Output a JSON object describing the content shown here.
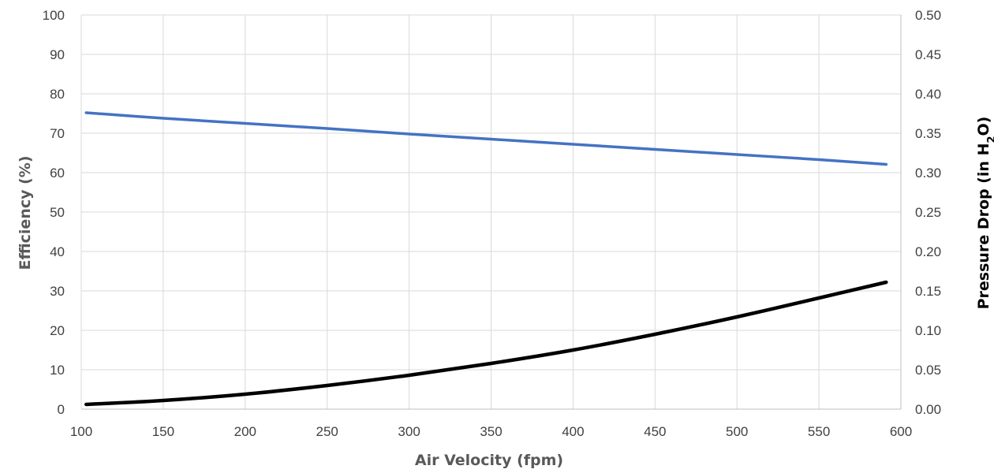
{
  "chart_data": {
    "type": "line",
    "xlabel": "Air Velocity (fpm)",
    "ylabel_left": "Efficiency (%)",
    "ylabel_right_parts": {
      "base": "Pressure Drop (in H",
      "sub": "2",
      "tail": "O)"
    },
    "xlim": [
      100,
      600
    ],
    "ylim_left": [
      0,
      100
    ],
    "ylim_right": [
      0,
      0.5
    ],
    "grid": true,
    "x_ticks": [
      "100",
      "150",
      "200",
      "250",
      "300",
      "350",
      "400",
      "450",
      "500",
      "550",
      "600"
    ],
    "y_left_ticks": [
      "0",
      "10",
      "20",
      "30",
      "40",
      "50",
      "60",
      "70",
      "80",
      "90",
      "100"
    ],
    "y_right_ticks": [
      "0.00",
      "0.05",
      "0.10",
      "0.15",
      "0.20",
      "0.25",
      "0.30",
      "0.35",
      "0.40",
      "0.45",
      "0.50"
    ],
    "series": [
      {
        "axis": "left",
        "color": "#4472C4",
        "x": [
          103,
          150,
          200,
          250,
          300,
          350,
          400,
          450,
          500,
          550,
          591
        ],
        "y": [
          75.2,
          73.8,
          72.5,
          71.2,
          69.8,
          68.5,
          67.2,
          65.9,
          64.6,
          63.3,
          62.1
        ]
      },
      {
        "axis": "right",
        "color": "#000000",
        "x": [
          103,
          150,
          200,
          250,
          300,
          350,
          400,
          450,
          500,
          550,
          591
        ],
        "y": [
          0.006,
          0.011,
          0.019,
          0.03,
          0.043,
          0.058,
          0.075,
          0.095,
          0.117,
          0.141,
          0.161
        ]
      }
    ]
  }
}
